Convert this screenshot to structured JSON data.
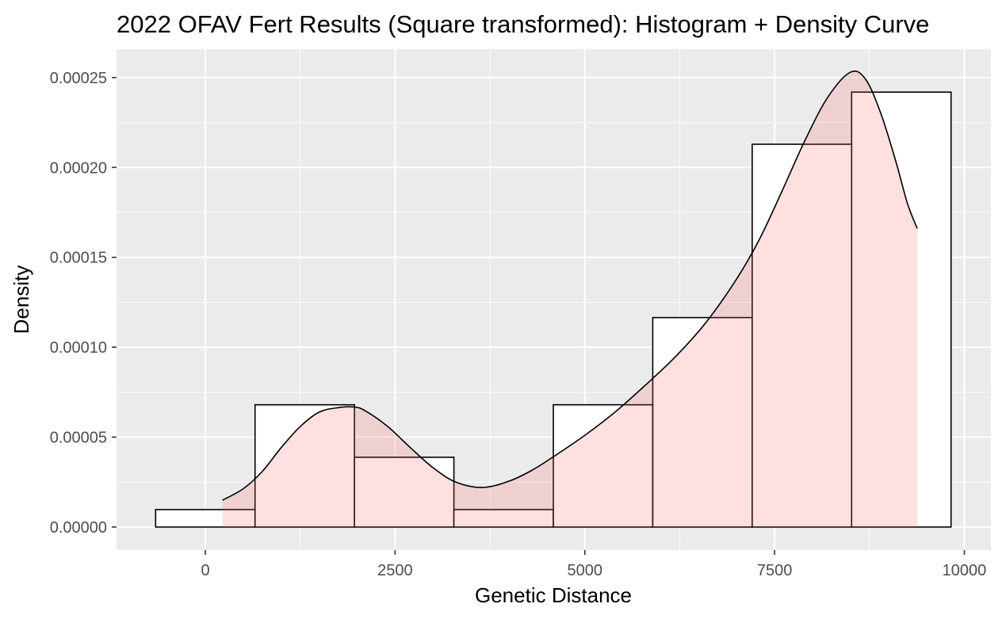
{
  "chart_data": {
    "type": "histogram",
    "title": "2022 OFAV Fert Results (Square transformed): Histogram + Density Curve",
    "xlabel": "Genetic Distance",
    "ylabel": "Density",
    "xlim": [
      -1170,
      10350
    ],
    "ylim": [
      -1.28e-05,
      0.0002658
    ],
    "x_ticks": [
      0,
      2500,
      5000,
      7500,
      10000
    ],
    "x_tick_labels": [
      "0",
      "2500",
      "5000",
      "7500",
      "10000"
    ],
    "y_ticks": [
      0,
      5e-05,
      0.0001,
      0.00015,
      0.0002,
      0.00025
    ],
    "y_tick_labels": [
      "0.00000",
      "0.00005",
      "0.00010",
      "0.00015",
      "0.00020",
      "0.00025"
    ],
    "grid": true,
    "bins": [
      {
        "x0": -655,
        "x1": 655,
        "density": 9.7e-06
      },
      {
        "x0": 655,
        "x1": 1965,
        "density": 6.8e-05
      },
      {
        "x0": 1965,
        "x1": 3275,
        "density": 3.88e-05
      },
      {
        "x0": 3275,
        "x1": 4585,
        "density": 9.7e-06
      },
      {
        "x0": 4585,
        "x1": 5895,
        "density": 6.8e-05
      },
      {
        "x0": 5895,
        "x1": 7205,
        "density": 0.0001165
      },
      {
        "x0": 7205,
        "x1": 8515,
        "density": 0.0002129
      },
      {
        "x0": 8515,
        "x1": 9825,
        "density": 0.0002419
      }
    ],
    "density_curve": {
      "x": [
        225,
        500,
        750,
        1000,
        1250,
        1500,
        1750,
        1950,
        2100,
        2400,
        2700,
        3000,
        3300,
        3650,
        4000,
        4300,
        4600,
        5000,
        5400,
        5800,
        6200,
        6600,
        7000,
        7300,
        7600,
        7900,
        8200,
        8500,
        8700,
        8900,
        9100,
        9250,
        9380
      ],
      "y": [
        1.49e-05,
        2.13e-05,
        3.09e-05,
        4.42e-05,
        5.59e-05,
        6.39e-05,
        6.64e-05,
        6.68e-05,
        6.48e-05,
        5.6e-05,
        4.42e-05,
        3.3e-05,
        2.5e-05,
        2.2e-05,
        2.55e-05,
        3.15e-05,
        3.95e-05,
        5.1e-05,
        6.4e-05,
        7.9e-05,
        9.5e-05,
        0.000114,
        0.000138,
        0.00016,
        0.000187,
        0.000215,
        0.000239,
        0.000253,
        0.000249,
        0.00023,
        0.000203,
        0.00018,
        0.000166
      ]
    },
    "colors": {
      "panel_background": "#ebebeb",
      "grid": "#ffffff",
      "bar_fill": "#ffffff",
      "bar_outline": "#000000",
      "density_fill": "#ff6666",
      "density_fill_opacity": 0.2,
      "density_line": "#000000"
    }
  }
}
